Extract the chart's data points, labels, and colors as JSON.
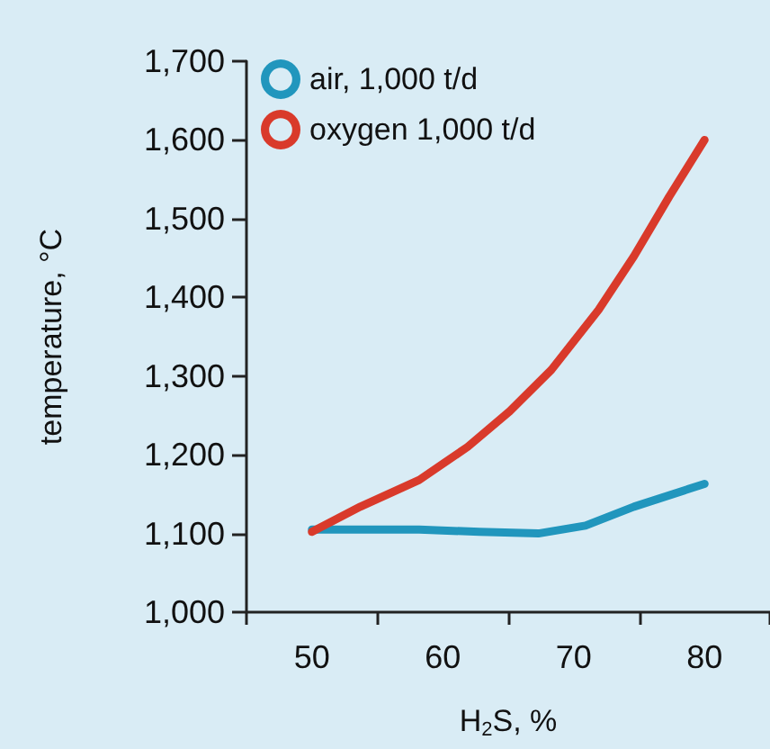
{
  "chart_data": {
    "type": "line",
    "xlabel": "H$_{2}$S, %",
    "ylabel": "temperature, °C",
    "series": [
      {
        "name": "air, 1,000 t/d",
        "color": "#2196bd",
        "x": [
          50,
          58.2,
          62.8,
          67.3,
          70.9,
          74.6,
          80
        ],
        "values": [
          1105,
          1105,
          1102,
          1100,
          1110,
          1134,
          1163
        ]
      },
      {
        "name": "oxygen 1,000 t/d",
        "color": "#d93a2b",
        "x": [
          50,
          53.7,
          58.2,
          61.9,
          65.1,
          68.3,
          71.9,
          74.6,
          77.3,
          80
        ],
        "values": [
          1102,
          1134,
          1168,
          1210,
          1255,
          1308,
          1384,
          1452,
          1528,
          1600
        ]
      }
    ],
    "xlim": [
      45,
      85
    ],
    "xticks": [
      {
        "value": 45,
        "label": null
      },
      50,
      {
        "value": 55,
        "label": null
      },
      60,
      {
        "value": 65,
        "label": null
      },
      70,
      {
        "value": 75,
        "label": null
      },
      80,
      {
        "value": 85,
        "label": null
      }
    ],
    "ylim": [
      1000,
      1700
    ],
    "yticks": [
      {
        "value": 1000,
        "label": "1,000"
      },
      {
        "value": 1100,
        "label": "1,100"
      },
      {
        "value": 1200,
        "label": "1,200"
      },
      {
        "value": 1300,
        "label": "1,300"
      },
      {
        "value": 1400,
        "label": "1,400"
      },
      {
        "value": 1500,
        "label": "1,500"
      },
      {
        "value": 1600,
        "label": "1,600"
      },
      {
        "value": 1700,
        "label": "1,700"
      }
    ],
    "grid": false,
    "legend": "top left",
    "marker": "none",
    "line_style": "solid"
  }
}
